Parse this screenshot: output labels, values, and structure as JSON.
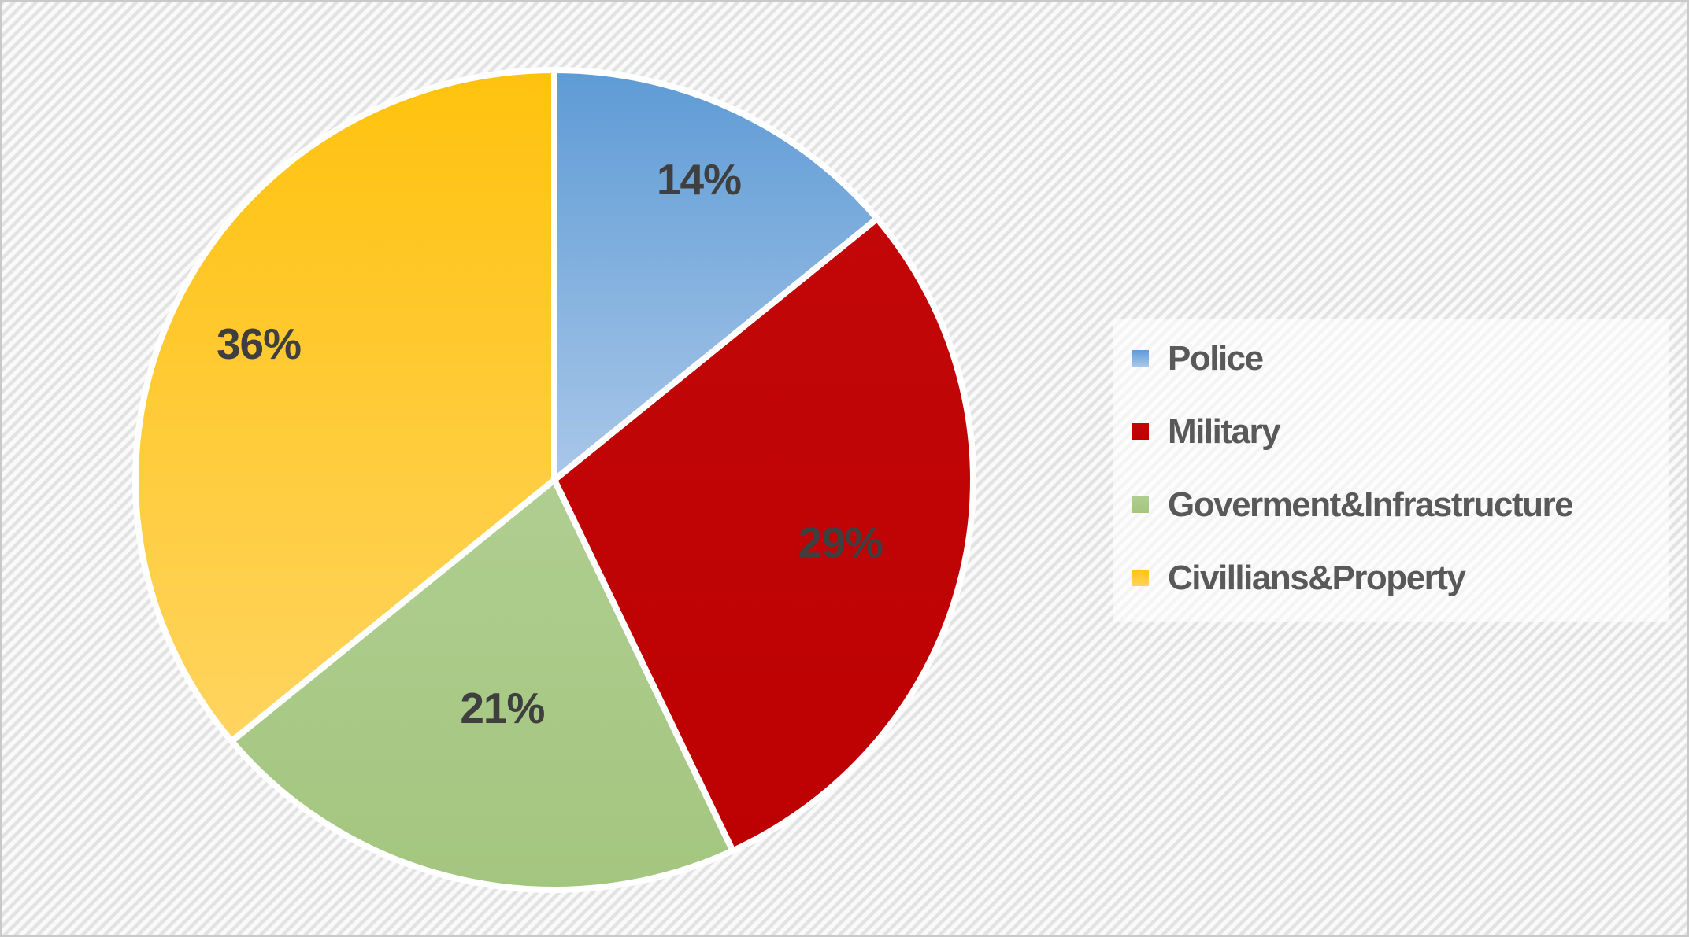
{
  "page": {
    "border_color": "#c9c9c9",
    "background_stripe_colors": [
      "#e2e2e2",
      "#fafafa"
    ]
  },
  "chart_data": {
    "type": "pie",
    "title": "",
    "categories": [
      "Police",
      "Military",
      "Goverment&Infrastructure",
      "Civillians&Property"
    ],
    "values": [
      14,
      29,
      21,
      36
    ],
    "labels": [
      "14%",
      "29%",
      "21%",
      "36%"
    ],
    "slice_colors": [
      {
        "from": "#5E9BD5",
        "to": "#A9C7E9"
      },
      {
        "from": "#C20709",
        "to": "#BD0103"
      },
      {
        "from": "#AFCE90",
        "to": "#A3C67F"
      },
      {
        "from": "#FFC20E",
        "to": "#FFD45F"
      }
    ],
    "label_color": "#3F3F3F",
    "start_angle_deg": 0,
    "clockwise": true,
    "donut": false,
    "grid": false,
    "legend": {
      "position": "right",
      "text_color": "#595959",
      "background": "rgba(255,255,255,0.62)",
      "entries": [
        "Police",
        "Military",
        "Goverment&Infrastructure",
        "Civillians&Property"
      ]
    }
  }
}
